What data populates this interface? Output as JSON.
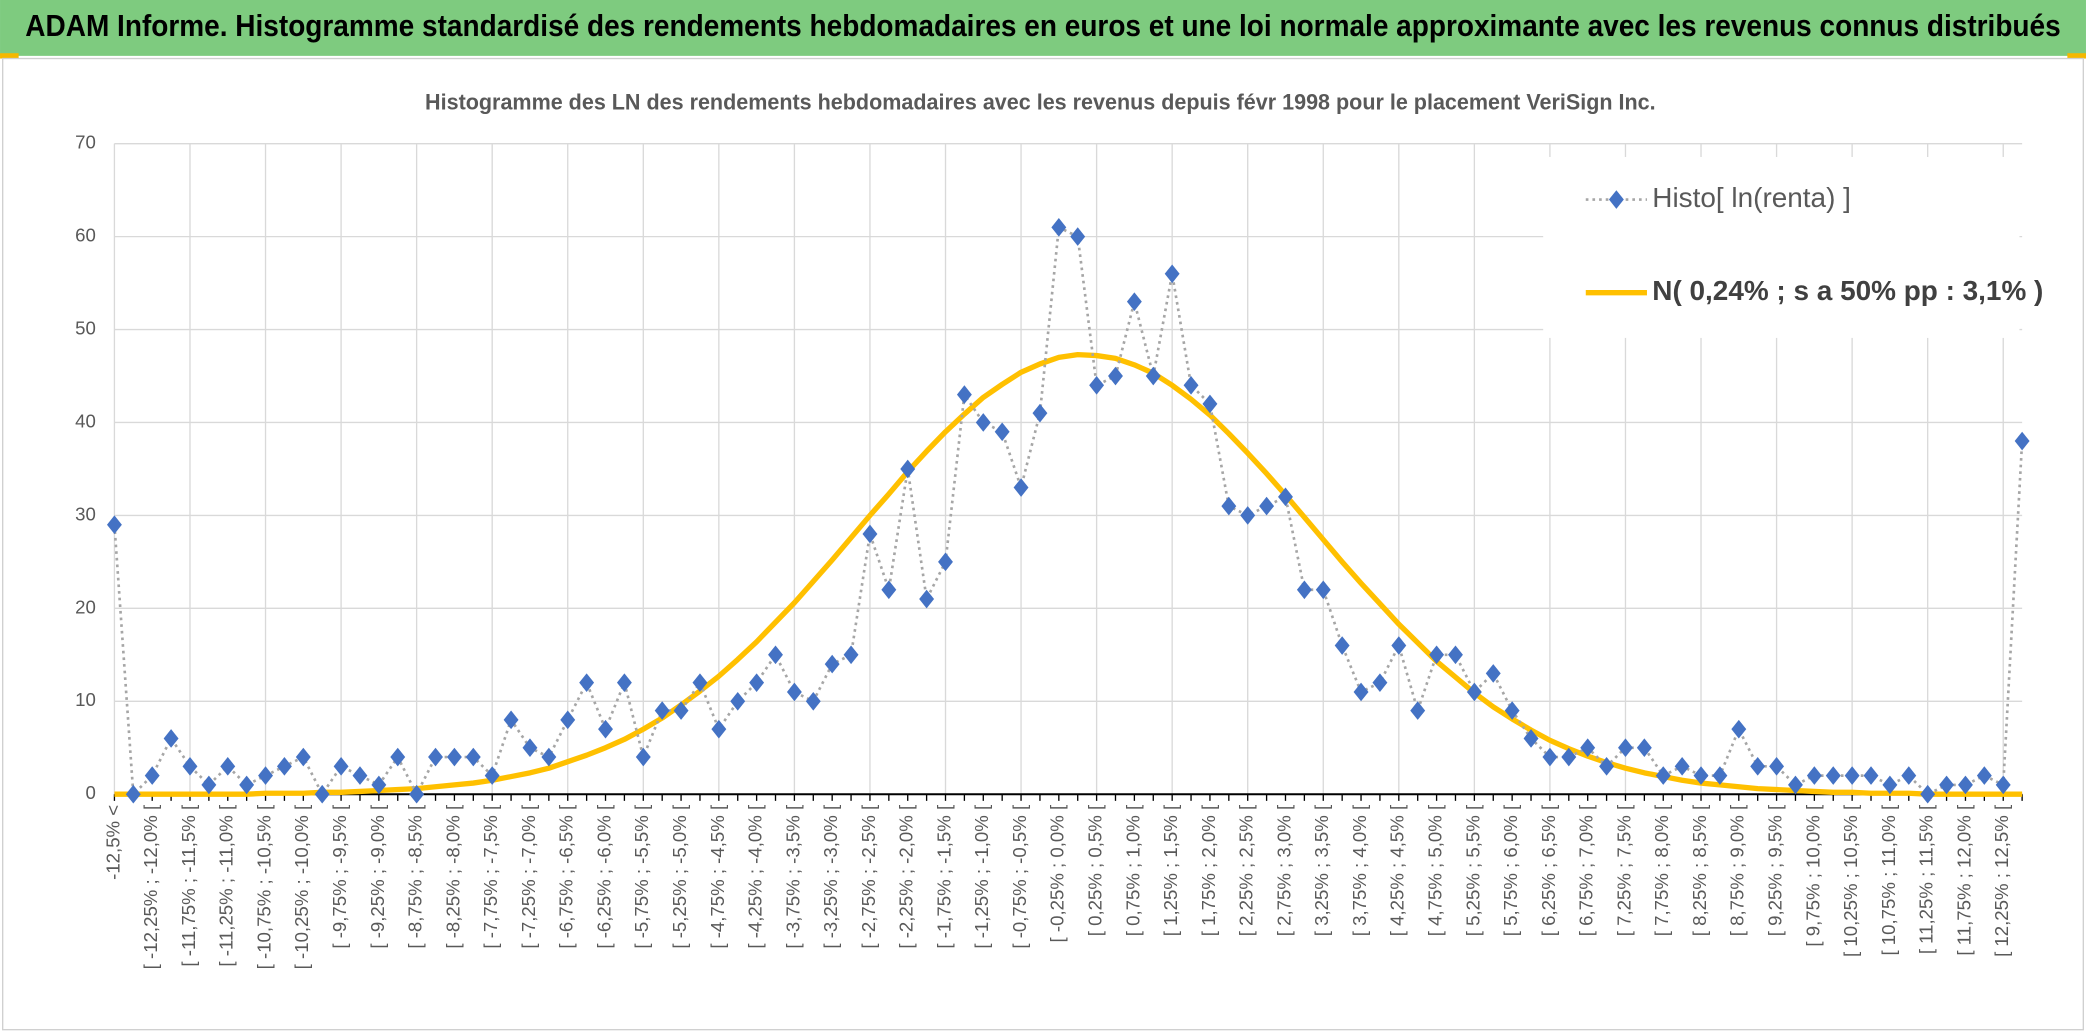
{
  "header": {
    "title": "ADAM Informe. Histogramme standardisé des rendements hebdomadaires en euros et une loi normale approximante avec les revenus connus distribués"
  },
  "chart_data": {
    "type": "line",
    "title": "Histogramme des LN des rendements hebdomadaires avec les revenus depuis févr 1998 pour le placement VeriSign Inc.",
    "categories": [
      "-12,5% <",
      null,
      "[ -12,25% ; -12,0% [",
      null,
      "[ -11,75% ; -11,5% [",
      null,
      "[ -11,25% ; -11,0% [",
      null,
      "[ -10,75% ; -10,5% [",
      null,
      "[ -10,25% ; -10,0% [",
      null,
      "[ -9,75% ; -9,5% [",
      null,
      "[ -9,25% ; -9,0% [",
      null,
      "[ -8,75% ; -8,5% [",
      null,
      "[ -8,25% ; -8,0% [",
      null,
      "[ -7,75% ; -7,5% [",
      null,
      "[ -7,25% ; -7,0% [",
      null,
      "[ -6,75% ; -6,5% [",
      null,
      "[ -6,25% ; -6,0% [",
      null,
      "[ -5,75% ; -5,5% [",
      null,
      "[ -5,25% ; -5,0% [",
      null,
      "[ -4,75% ; -4,5% [",
      null,
      "[ -4,25% ; -4,0% [",
      null,
      "[ -3,75% ; -3,5% [",
      null,
      "[ -3,25% ; -3,0% [",
      null,
      "[ -2,75% ; -2,5% [",
      null,
      "[ -2,25% ; -2,0% [",
      null,
      "[ -1,75% ; -1,5% [",
      null,
      "[ -1,25% ; -1,0% [",
      null,
      "[ -0,75% ; -0,5% [",
      null,
      "[ -0,25% ; 0,0% [",
      null,
      "[ 0,25% ; 0,5% [",
      null,
      "[ 0,75% ; 1,0% [",
      null,
      "[ 1,25% ; 1,5% [",
      null,
      "[ 1,75% ; 2,0% [",
      null,
      "[ 2,25% ; 2,5% [",
      null,
      "[ 2,75% ; 3,0% [",
      null,
      "[ 3,25% ; 3,5% [",
      null,
      "[ 3,75% ; 4,0% [",
      null,
      "[ 4,25% ; 4,5% [",
      null,
      "[ 4,75% ; 5,0% [",
      null,
      "[ 5,25% ; 5,5% [",
      null,
      "[ 5,75% ; 6,0% [",
      null,
      "[ 6,25% ; 6,5% [",
      null,
      "[ 6,75% ; 7,0% [",
      null,
      "[ 7,25% ; 7,5% [",
      null,
      "[ 7,75% ; 8,0% [",
      null,
      "[ 8,25% ; 8,5% [",
      null,
      "[ 8,75% ; 9,0% [",
      null,
      "[ 9,25% ; 9,5% [",
      null,
      "[ 9,75% ; 10,0% [",
      null,
      "[ 10,25% ; 10,5% [",
      null,
      "[ 10,75% ; 11,0% [",
      null,
      "[ 11,25% ; 11,5% [",
      null,
      "[ 11,75% ; 12,0% [",
      null,
      "[ 12,25% ; 12,5% [",
      null
    ],
    "series": [
      {
        "name": "Histo[ ln(renta) ]",
        "color": "#a6a6a6",
        "marker_color": "#4472c4",
        "values": [
          29,
          0,
          2,
          6,
          3,
          1,
          3,
          1,
          2,
          3,
          4,
          0,
          3,
          2,
          1,
          4,
          0,
          4,
          4,
          4,
          2,
          8,
          5,
          4,
          8,
          12,
          7,
          12,
          4,
          9,
          9,
          12,
          7,
          10,
          12,
          15,
          11,
          10,
          14,
          15,
          28,
          22,
          35,
          21,
          25,
          43,
          40,
          39,
          33,
          41,
          61,
          60,
          44,
          45,
          53,
          45,
          56,
          44,
          42,
          31,
          30,
          31,
          32,
          22,
          22,
          16,
          11,
          12,
          16,
          9,
          15,
          15,
          11,
          13,
          9,
          6,
          4,
          4,
          5,
          3,
          5,
          5,
          2,
          3,
          2,
          2,
          7,
          3,
          3,
          1,
          2,
          2,
          2,
          2,
          1,
          2,
          0,
          1,
          1,
          2,
          1,
          38
        ]
      },
      {
        "name": "N( 0,24% ; s a 50% pp : 3,1% )",
        "color": "#ffc000",
        "values": [
          0,
          0,
          0,
          0,
          0,
          0,
          0,
          0,
          0.1,
          0.1,
          0.1,
          0.2,
          0.2,
          0.3,
          0.4,
          0.5,
          0.6,
          0.8,
          1.0,
          1.2,
          1.5,
          1.9,
          2.3,
          2.8,
          3.5,
          4.2,
          5.0,
          5.9,
          7.0,
          8.2,
          9.6,
          11.1,
          12.7,
          14.5,
          16.4,
          18.5,
          20.6,
          22.9,
          25.2,
          27.6,
          30.0,
          32.3,
          34.7,
          36.9,
          39.0,
          40.9,
          42.7,
          44.1,
          45.4,
          46.3,
          47.0,
          47.3,
          47.2,
          46.9,
          46.2,
          45.3,
          44.0,
          42.5,
          40.8,
          38.8,
          36.7,
          34.5,
          32.2,
          29.8,
          27.4,
          25.0,
          22.7,
          20.5,
          18.3,
          16.3,
          14.3,
          12.6,
          10.9,
          9.4,
          8.1,
          6.9,
          5.8,
          4.9,
          4.1,
          3.4,
          2.8,
          2.3,
          1.9,
          1.5,
          1.2,
          1.0,
          0.8,
          0.6,
          0.5,
          0.4,
          0.3,
          0.2,
          0.2,
          0.1,
          0.1,
          0.1,
          0,
          0,
          0,
          0,
          0,
          0
        ]
      }
    ],
    "ylim": [
      0,
      70
    ],
    "yticks": [
      0,
      10,
      20,
      30,
      40,
      50,
      60,
      70
    ],
    "grid": true,
    "legend": "upper right"
  }
}
